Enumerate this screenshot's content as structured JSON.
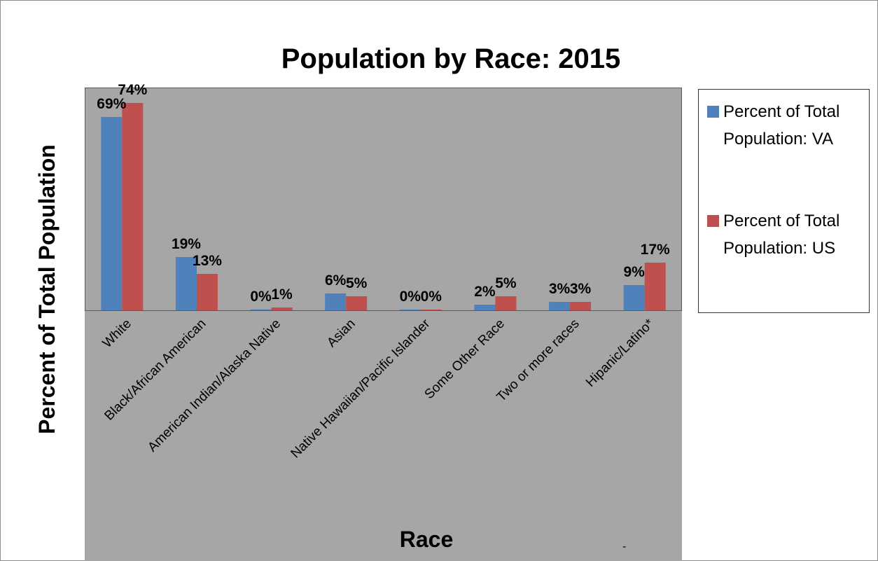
{
  "chart_data": {
    "type": "bar",
    "title": "Population by Race: 2015",
    "xlabel": "Race",
    "ylabel": "Percent of Total Population",
    "categories": [
      "White",
      "Black/African American",
      "American Indian/Alaska Native",
      "Asian",
      "Native Hawaiian/Pacific Islander",
      "Some Other Race",
      "Two or more races",
      "Hipanic/Latino*"
    ],
    "series": [
      {
        "name": "Percent of Total Population: VA",
        "color": "#4f81bd",
        "values": [
          69,
          19,
          0.3,
          6,
          0.1,
          2,
          3,
          9
        ],
        "labels": [
          "69%",
          "19%",
          "0%",
          "6%",
          "0%",
          "2%",
          "3%",
          "9%"
        ]
      },
      {
        "name": "Percent of Total Population: US",
        "color": "#c0504d",
        "values": [
          74,
          13,
          1,
          5,
          0.2,
          5,
          3,
          17
        ],
        "labels": [
          "74%",
          "13%",
          "1%",
          "5%",
          "0%",
          "5%",
          "3%",
          "17%"
        ]
      }
    ],
    "ylim": [
      0,
      80
    ],
    "grid": false,
    "legend": "right",
    "plot_background": "#a6a6a6"
  },
  "stray_mark": "-"
}
